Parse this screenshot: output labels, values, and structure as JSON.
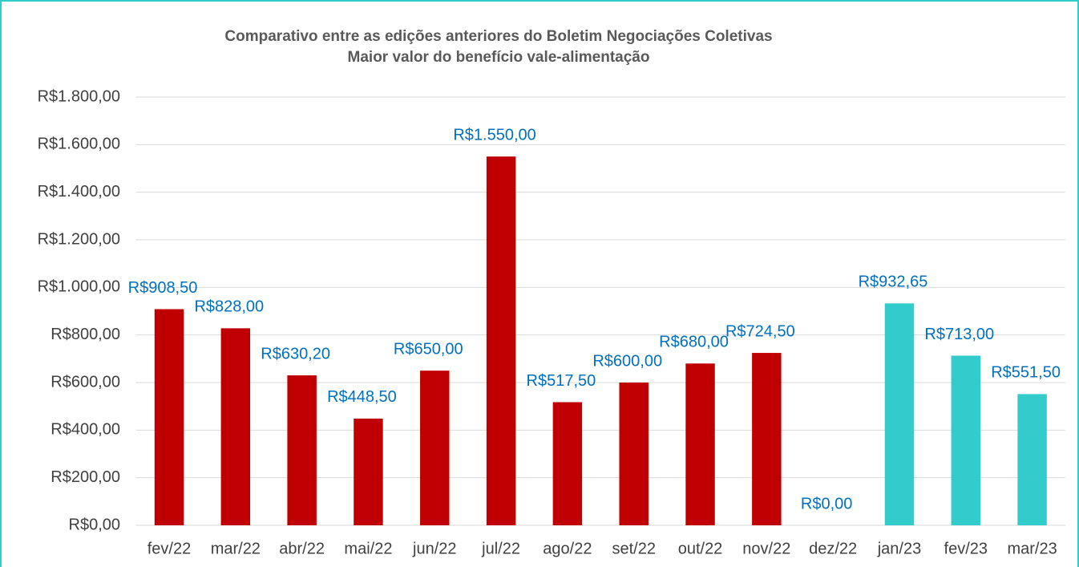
{
  "chart_data": {
    "type": "bar",
    "title": "Comparativo entre as edições anteriores do Boletim Negociações Coletivas",
    "subtitle": "Maior valor do benefício vale-alimentação",
    "categories": [
      "fev/22",
      "mar/22",
      "abr/22",
      "mai/22",
      "jun/22",
      "jul/22",
      "ago/22",
      "set/22",
      "out/22",
      "nov/22",
      "dez/22",
      "jan/23",
      "fev/23",
      "mar/23"
    ],
    "values": [
      908.5,
      828,
      630.2,
      448.5,
      650,
      1550,
      517.5,
      600,
      680,
      724.5,
      0,
      932.65,
      713,
      551.5
    ],
    "value_labels": [
      "R$908,50",
      "R$828,00",
      "R$630,20",
      "R$448,50",
      "R$650,00",
      "R$1.550,00",
      "R$517,50",
      "R$600,00",
      "R$680,00",
      "R$724,50",
      "R$0,00",
      "R$932,65",
      "R$713,00",
      "R$551,50"
    ],
    "colors": [
      "#c00000",
      "#c00000",
      "#c00000",
      "#c00000",
      "#c00000",
      "#c00000",
      "#c00000",
      "#c00000",
      "#c00000",
      "#c00000",
      "#c00000",
      "#33cccc",
      "#33cccc",
      "#33cccc"
    ],
    "ylim": [
      0,
      1800
    ],
    "yticks": [
      {
        "value": 0,
        "label": "R$0,00"
      },
      {
        "value": 200,
        "label": "R$200,00"
      },
      {
        "value": 400,
        "label": "R$400,00"
      },
      {
        "value": 600,
        "label": "R$600,00"
      },
      {
        "value": 800,
        "label": "R$800,00"
      },
      {
        "value": 1000,
        "label": "R$1.000,00"
      },
      {
        "value": 1200,
        "label": "R$1.200,00"
      },
      {
        "value": 1400,
        "label": "R$1.400,00"
      },
      {
        "value": 1600,
        "label": "R$1.600,00"
      },
      {
        "value": 1800,
        "label": "R$1.800,00"
      }
    ],
    "grid": true
  }
}
